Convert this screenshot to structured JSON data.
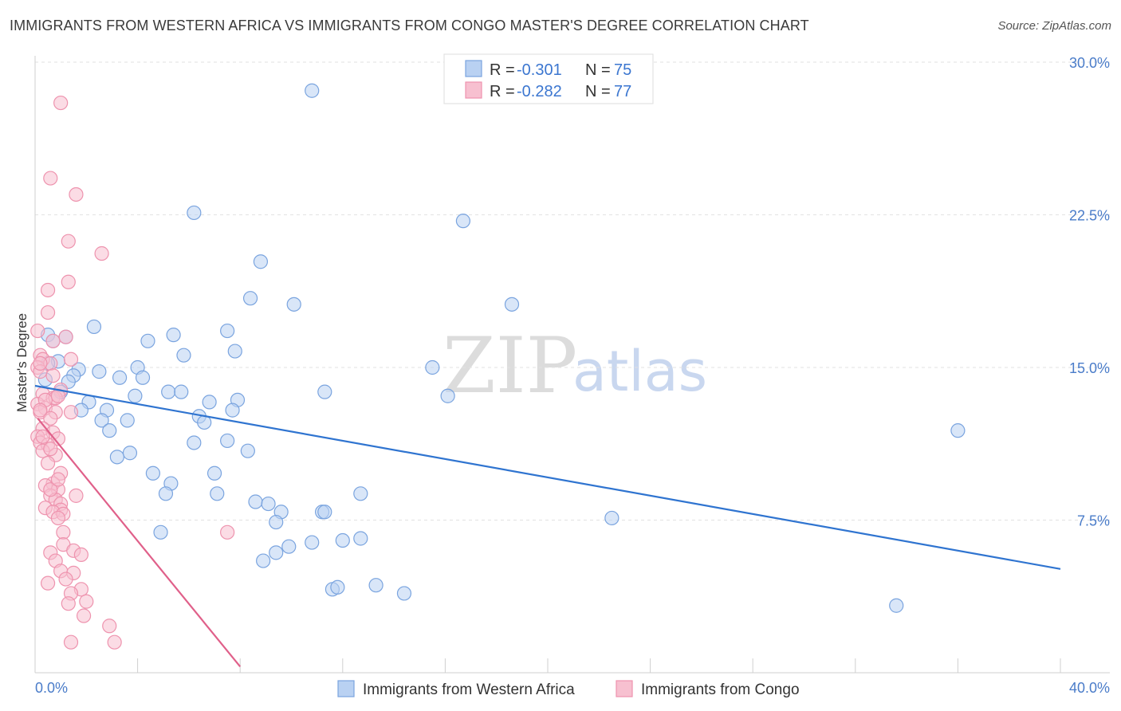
{
  "header": {
    "title": "IMMIGRANTS FROM WESTERN AFRICA VS IMMIGRANTS FROM CONGO MASTER'S DEGREE CORRELATION CHART",
    "source": "Source: ZipAtlas.com"
  },
  "watermark": {
    "zip": "ZIP",
    "atlas": "atlas"
  },
  "legend": {
    "rows": [
      {
        "r_label": "R =",
        "r_value": "-0.301",
        "n_label": "N =",
        "n_value": "75"
      },
      {
        "r_label": "R =",
        "r_value": "-0.282",
        "n_label": "N =",
        "n_value": "77"
      }
    ]
  },
  "bottom_legend": {
    "series1": "Immigrants from Western Africa",
    "series2": "Immigrants from Congo"
  },
  "colors": {
    "blue_fill": "#b9d1f2",
    "blue_stroke": "#7aa4df",
    "blue_line": "#2f74d0",
    "pink_fill": "#f7c0d0",
    "pink_stroke": "#ee93ae",
    "pink_line": "#e0608a"
  },
  "chart_data": {
    "type": "scatter",
    "title": "IMMIGRANTS FROM WESTERN AFRICA VS IMMIGRANTS FROM CONGO MASTER'S DEGREE CORRELATION CHART",
    "xlabel": "",
    "ylabel": "Master's Degree",
    "xlim": [
      0,
      40
    ],
    "ylim": [
      0,
      30
    ],
    "x_tick_labels": [
      "0.0%",
      "40.0%"
    ],
    "y_ticks": [
      7.5,
      15.0,
      22.5,
      30.0
    ],
    "y_tick_labels": [
      "7.5%",
      "15.0%",
      "22.5%",
      "30.0%"
    ],
    "series": [
      {
        "name": "Immigrants from Western Africa",
        "trend": {
          "x": [
            0,
            40
          ],
          "y": [
            14.1,
            5.1
          ]
        },
        "points": [
          [
            10.8,
            28.6
          ],
          [
            6.2,
            22.6
          ],
          [
            16.7,
            22.2
          ],
          [
            8.8,
            20.2
          ],
          [
            8.4,
            18.4
          ],
          [
            10.1,
            18.1
          ],
          [
            18.6,
            18.1
          ],
          [
            2.3,
            17.0
          ],
          [
            7.5,
            16.8
          ],
          [
            5.4,
            16.6
          ],
          [
            0.5,
            16.6
          ],
          [
            1.2,
            16.5
          ],
          [
            0.7,
            16.3
          ],
          [
            4.4,
            16.3
          ],
          [
            7.8,
            15.8
          ],
          [
            5.8,
            15.6
          ],
          [
            0.9,
            15.3
          ],
          [
            1.7,
            14.9
          ],
          [
            15.5,
            15.0
          ],
          [
            4.0,
            15.0
          ],
          [
            0.5,
            15.2
          ],
          [
            2.5,
            14.8
          ],
          [
            1.5,
            14.6
          ],
          [
            3.3,
            14.5
          ],
          [
            4.2,
            14.5
          ],
          [
            1.3,
            14.3
          ],
          [
            0.4,
            14.4
          ],
          [
            11.3,
            13.8
          ],
          [
            5.2,
            13.8
          ],
          [
            5.7,
            13.8
          ],
          [
            3.9,
            13.6
          ],
          [
            7.9,
            13.4
          ],
          [
            16.1,
            13.6
          ],
          [
            2.1,
            13.3
          ],
          [
            6.8,
            13.3
          ],
          [
            7.7,
            12.9
          ],
          [
            1.8,
            12.9
          ],
          [
            2.8,
            12.9
          ],
          [
            6.4,
            12.6
          ],
          [
            6.6,
            12.3
          ],
          [
            2.6,
            12.4
          ],
          [
            3.6,
            12.4
          ],
          [
            2.9,
            11.9
          ],
          [
            7.5,
            11.4
          ],
          [
            6.2,
            11.3
          ],
          [
            8.3,
            10.9
          ],
          [
            3.7,
            10.8
          ],
          [
            3.2,
            10.6
          ],
          [
            36.0,
            11.9
          ],
          [
            4.6,
            9.8
          ],
          [
            7.0,
            9.8
          ],
          [
            5.3,
            9.3
          ],
          [
            5.1,
            8.8
          ],
          [
            7.1,
            8.8
          ],
          [
            12.7,
            8.8
          ],
          [
            8.6,
            8.4
          ],
          [
            9.1,
            8.3
          ],
          [
            9.6,
            7.9
          ],
          [
            11.2,
            7.9
          ],
          [
            11.3,
            7.9
          ],
          [
            22.5,
            7.6
          ],
          [
            9.4,
            7.4
          ],
          [
            4.9,
            6.9
          ],
          [
            12.0,
            6.5
          ],
          [
            12.7,
            6.6
          ],
          [
            10.8,
            6.4
          ],
          [
            9.9,
            6.2
          ],
          [
            9.4,
            5.9
          ],
          [
            8.9,
            5.5
          ],
          [
            11.6,
            4.1
          ],
          [
            11.8,
            4.2
          ],
          [
            13.3,
            4.3
          ],
          [
            14.4,
            3.9
          ],
          [
            33.6,
            3.3
          ],
          [
            1.0,
            13.8
          ]
        ]
      },
      {
        "name": "Immigrants from Congo",
        "trend": {
          "x": [
            0.1,
            8.0
          ],
          "y": [
            12.5,
            0.3
          ]
        },
        "points": [
          [
            1.0,
            28.0
          ],
          [
            0.6,
            24.3
          ],
          [
            1.6,
            23.5
          ],
          [
            1.3,
            21.2
          ],
          [
            2.6,
            20.6
          ],
          [
            1.3,
            19.2
          ],
          [
            0.5,
            18.8
          ],
          [
            0.5,
            17.7
          ],
          [
            0.1,
            16.8
          ],
          [
            1.2,
            16.5
          ],
          [
            0.7,
            16.3
          ],
          [
            0.2,
            15.6
          ],
          [
            1.4,
            15.4
          ],
          [
            0.3,
            15.4
          ],
          [
            0.6,
            15.2
          ],
          [
            0.1,
            15.0
          ],
          [
            0.2,
            14.8
          ],
          [
            0.7,
            14.6
          ],
          [
            1.0,
            13.9
          ],
          [
            0.3,
            13.7
          ],
          [
            0.7,
            13.5
          ],
          [
            0.8,
            13.5
          ],
          [
            0.1,
            13.2
          ],
          [
            0.4,
            13.0
          ],
          [
            0.2,
            12.8
          ],
          [
            0.8,
            12.8
          ],
          [
            1.4,
            12.8
          ],
          [
            0.6,
            12.5
          ],
          [
            0.3,
            12.0
          ],
          [
            0.7,
            11.8
          ],
          [
            0.1,
            11.6
          ],
          [
            0.9,
            11.5
          ],
          [
            0.2,
            11.3
          ],
          [
            0.5,
            11.2
          ],
          [
            0.3,
            10.9
          ],
          [
            0.8,
            10.7
          ],
          [
            0.5,
            10.3
          ],
          [
            1.0,
            9.8
          ],
          [
            0.7,
            9.3
          ],
          [
            0.4,
            9.2
          ],
          [
            0.9,
            9.0
          ],
          [
            0.6,
            8.7
          ],
          [
            0.8,
            8.5
          ],
          [
            1.0,
            8.3
          ],
          [
            0.4,
            8.1
          ],
          [
            1.0,
            8.0
          ],
          [
            0.7,
            7.9
          ],
          [
            1.1,
            7.8
          ],
          [
            0.9,
            7.6
          ],
          [
            1.1,
            6.9
          ],
          [
            7.5,
            6.9
          ],
          [
            1.1,
            6.3
          ],
          [
            0.6,
            5.9
          ],
          [
            1.5,
            6.0
          ],
          [
            1.8,
            5.8
          ],
          [
            0.8,
            5.5
          ],
          [
            1.0,
            5.0
          ],
          [
            1.5,
            4.9
          ],
          [
            0.5,
            4.4
          ],
          [
            1.8,
            4.1
          ],
          [
            1.4,
            3.9
          ],
          [
            1.3,
            3.4
          ],
          [
            2.0,
            3.5
          ],
          [
            1.9,
            2.8
          ],
          [
            2.9,
            2.3
          ],
          [
            1.4,
            1.5
          ],
          [
            3.1,
            1.5
          ],
          [
            0.6,
            9.0
          ],
          [
            0.3,
            11.6
          ],
          [
            1.2,
            4.6
          ],
          [
            0.9,
            9.5
          ],
          [
            0.4,
            13.4
          ],
          [
            0.6,
            11.0
          ],
          [
            0.2,
            15.2
          ],
          [
            1.6,
            8.7
          ],
          [
            0.2,
            12.9
          ],
          [
            0.9,
            13.6
          ]
        ]
      }
    ]
  }
}
